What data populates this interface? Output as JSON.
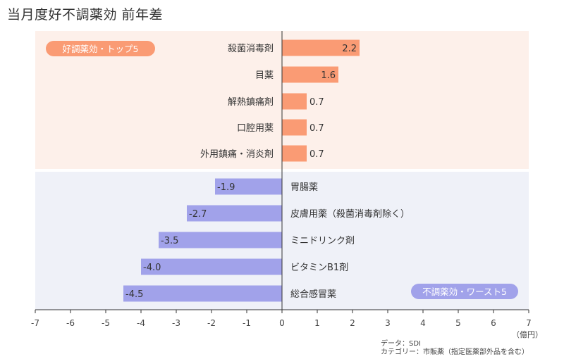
{
  "title": "当月度好不調薬効 前年差",
  "chart_data": {
    "type": "bar",
    "orientation": "horizontal",
    "unit": "（億円）",
    "xlim": [
      -7,
      7
    ],
    "xticks": [
      -7,
      -6,
      -5,
      -4,
      -3,
      -2,
      -1,
      0,
      1,
      2,
      3,
      4,
      5,
      6,
      7
    ],
    "groups": [
      {
        "label": "好調薬効・トップ5",
        "color": "#fa9b74",
        "background": "#fdf0ea",
        "categories": [
          "殺菌消毒剤",
          "目薬",
          "解熱鎮痛剤",
          "口腔用薬",
          "外用鎮痛・消炎剤"
        ],
        "values": [
          2.2,
          1.6,
          0.7,
          0.7,
          0.7
        ],
        "value_labels": [
          "2.2",
          "1.6",
          "0.7",
          "0.7",
          "0.7"
        ]
      },
      {
        "label": "不調薬効・ワースト5",
        "color": "#a1a2ea",
        "background": "#eff1f8",
        "categories": [
          "胃腸薬",
          "皮膚用薬（殺菌消毒剤除く）",
          "ミニドリンク剤",
          "ビタミンB1剤",
          "総合感冒薬"
        ],
        "values": [
          -1.9,
          -2.7,
          -3.5,
          -4.0,
          -4.5
        ],
        "value_labels": [
          "-1.9",
          "-2.7",
          "-3.5",
          "-4.0",
          "-4.5"
        ]
      }
    ]
  },
  "source": {
    "line1": "データ：SDI",
    "line2": "カテゴリー：市販薬（指定医薬部外品を含む）"
  }
}
